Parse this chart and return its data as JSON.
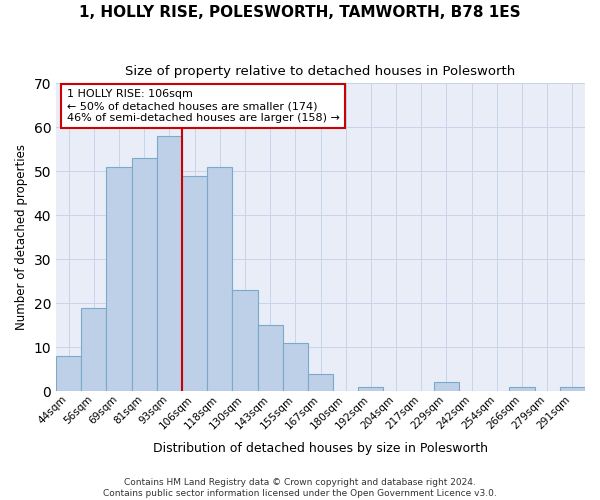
{
  "title": "1, HOLLY RISE, POLESWORTH, TAMWORTH, B78 1ES",
  "subtitle": "Size of property relative to detached houses in Polesworth",
  "xlabel": "Distribution of detached houses by size in Polesworth",
  "ylabel": "Number of detached properties",
  "categories": [
    "44sqm",
    "56sqm",
    "69sqm",
    "81sqm",
    "93sqm",
    "106sqm",
    "118sqm",
    "130sqm",
    "143sqm",
    "155sqm",
    "167sqm",
    "180sqm",
    "192sqm",
    "204sqm",
    "217sqm",
    "229sqm",
    "242sqm",
    "254sqm",
    "266sqm",
    "279sqm",
    "291sqm"
  ],
  "values": [
    8,
    19,
    51,
    53,
    58,
    49,
    51,
    23,
    15,
    11,
    4,
    0,
    1,
    0,
    0,
    2,
    0,
    0,
    1,
    0,
    1
  ],
  "bar_color": "#bdd0e8",
  "bar_edge_color": "#7aaac8",
  "vline_x": 4.5,
  "vline_color": "#cc0000",
  "annotation_text": "1 HOLLY RISE: 106sqm\n← 50% of detached houses are smaller (174)\n46% of semi-detached houses are larger (158) →",
  "annotation_box_color": "#ffffff",
  "annotation_box_edge": "#cc0000",
  "ylim": [
    0,
    70
  ],
  "yticks": [
    0,
    10,
    20,
    30,
    40,
    50,
    60,
    70
  ],
  "grid_color": "#c8d4e8",
  "bg_color": "#e8edf8",
  "footer": "Contains HM Land Registry data © Crown copyright and database right 2024.\nContains public sector information licensed under the Open Government Licence v3.0."
}
